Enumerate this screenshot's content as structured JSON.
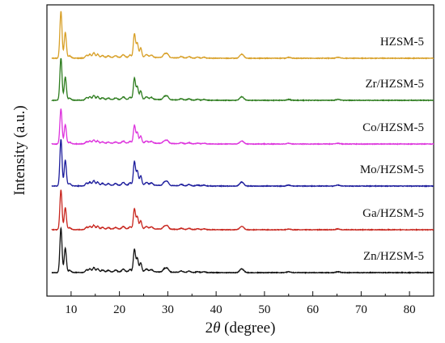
{
  "chart_data": {
    "type": "line",
    "xlabel_prefix": "2",
    "xlabel_symbol": "θ",
    "xlabel_suffix": " (degree)",
    "ylabel": "Intensity (a.u.)",
    "xlim": [
      5,
      85
    ],
    "xticks": [
      10,
      20,
      30,
      40,
      50,
      60,
      70,
      80
    ],
    "grid": false,
    "legend": "inline labels at right of each trace",
    "peaks": [
      {
        "x": 7.9,
        "h": 1.0,
        "w": 0.22
      },
      {
        "x": 8.8,
        "h": 0.55,
        "w": 0.22
      },
      {
        "x": 9.7,
        "h": 0.05,
        "w": 0.3
      },
      {
        "x": 13.2,
        "h": 0.06,
        "w": 0.25
      },
      {
        "x": 13.9,
        "h": 0.08,
        "w": 0.25
      },
      {
        "x": 14.7,
        "h": 0.11,
        "w": 0.25
      },
      {
        "x": 15.5,
        "h": 0.08,
        "w": 0.25
      },
      {
        "x": 16.5,
        "h": 0.05,
        "w": 0.3
      },
      {
        "x": 17.7,
        "h": 0.04,
        "w": 0.3
      },
      {
        "x": 19.2,
        "h": 0.04,
        "w": 0.3
      },
      {
        "x": 20.8,
        "h": 0.06,
        "w": 0.3
      },
      {
        "x": 22.2,
        "h": 0.05,
        "w": 0.25
      },
      {
        "x": 23.1,
        "h": 0.5,
        "w": 0.22
      },
      {
        "x": 23.7,
        "h": 0.3,
        "w": 0.22
      },
      {
        "x": 24.4,
        "h": 0.2,
        "w": 0.22
      },
      {
        "x": 25.6,
        "h": 0.06,
        "w": 0.3
      },
      {
        "x": 26.6,
        "h": 0.05,
        "w": 0.3
      },
      {
        "x": 29.3,
        "h": 0.07,
        "w": 0.3
      },
      {
        "x": 29.9,
        "h": 0.08,
        "w": 0.3
      },
      {
        "x": 32.8,
        "h": 0.03,
        "w": 0.3
      },
      {
        "x": 34.4,
        "h": 0.03,
        "w": 0.3
      },
      {
        "x": 36.2,
        "h": 0.02,
        "w": 0.3
      },
      {
        "x": 37.5,
        "h": 0.02,
        "w": 0.3
      },
      {
        "x": 45.1,
        "h": 0.05,
        "w": 0.35
      },
      {
        "x": 45.5,
        "h": 0.05,
        "w": 0.35
      },
      {
        "x": 55.0,
        "h": 0.02,
        "w": 0.35
      },
      {
        "x": 65.2,
        "h": 0.02,
        "w": 0.4
      }
    ],
    "series": [
      {
        "name": "HZSM-5",
        "color": "#D8A028",
        "scale": 1.0
      },
      {
        "name": "Zr/HZSM-5",
        "color": "#2E7D1F",
        "scale": 0.9
      },
      {
        "name": "Co/HZSM-5",
        "color": "#DD33DD",
        "scale": 0.75
      },
      {
        "name": "Mo/HZSM-5",
        "color": "#1C1C9C",
        "scale": 1.0
      },
      {
        "name": "Ga/HZSM-5",
        "color": "#C8261E",
        "scale": 0.85
      },
      {
        "name": "Zn/HZSM-5",
        "color": "#111111",
        "scale": 0.95
      }
    ]
  }
}
